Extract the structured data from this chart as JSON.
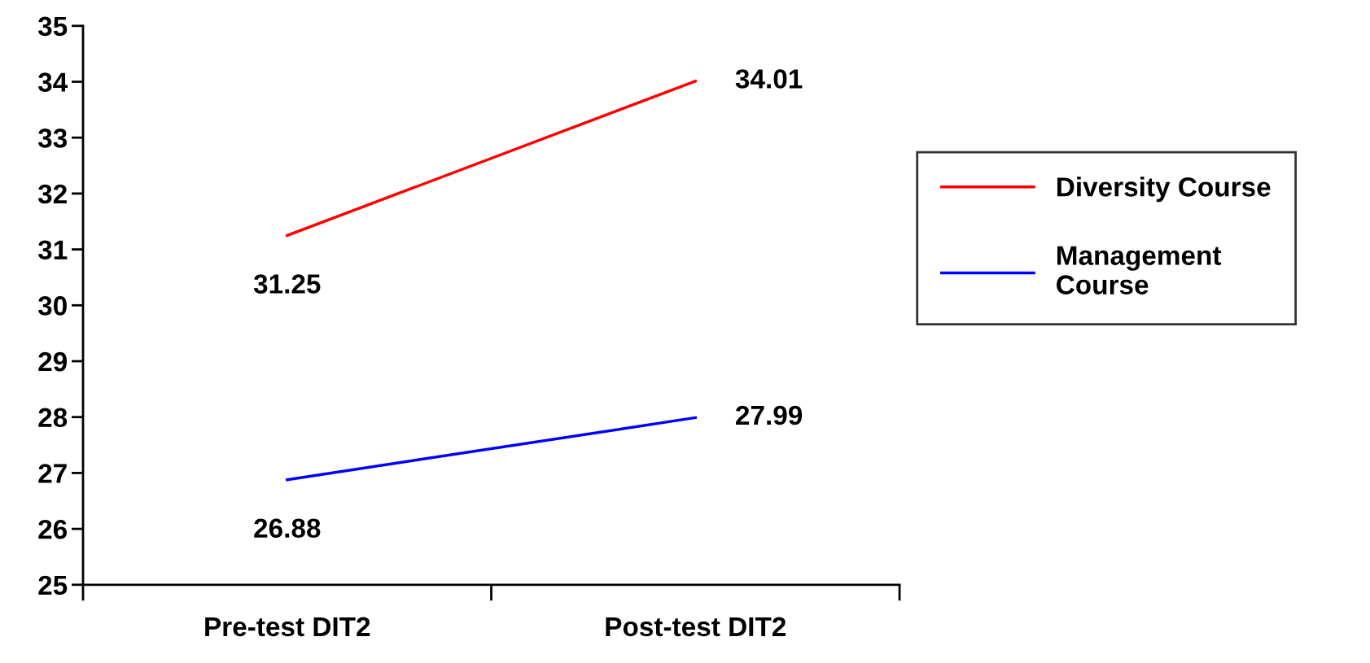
{
  "chart_data": {
    "type": "line",
    "categories": [
      "Pre-test DIT2",
      "Post-test DIT2"
    ],
    "series": [
      {
        "name": "Diversity Course",
        "color": "#ff0000",
        "values": [
          31.25,
          34.01
        ]
      },
      {
        "name": "Management\nCourse",
        "color": "#0000ff",
        "values": [
          26.88,
          27.99
        ]
      }
    ],
    "ylim": [
      25,
      35
    ],
    "yticks": [
      25,
      26,
      27,
      28,
      29,
      30,
      31,
      32,
      33,
      34,
      35
    ],
    "data_labels": true,
    "legend": "right",
    "grid": false,
    "marker": "none",
    "line_style": "solid"
  }
}
